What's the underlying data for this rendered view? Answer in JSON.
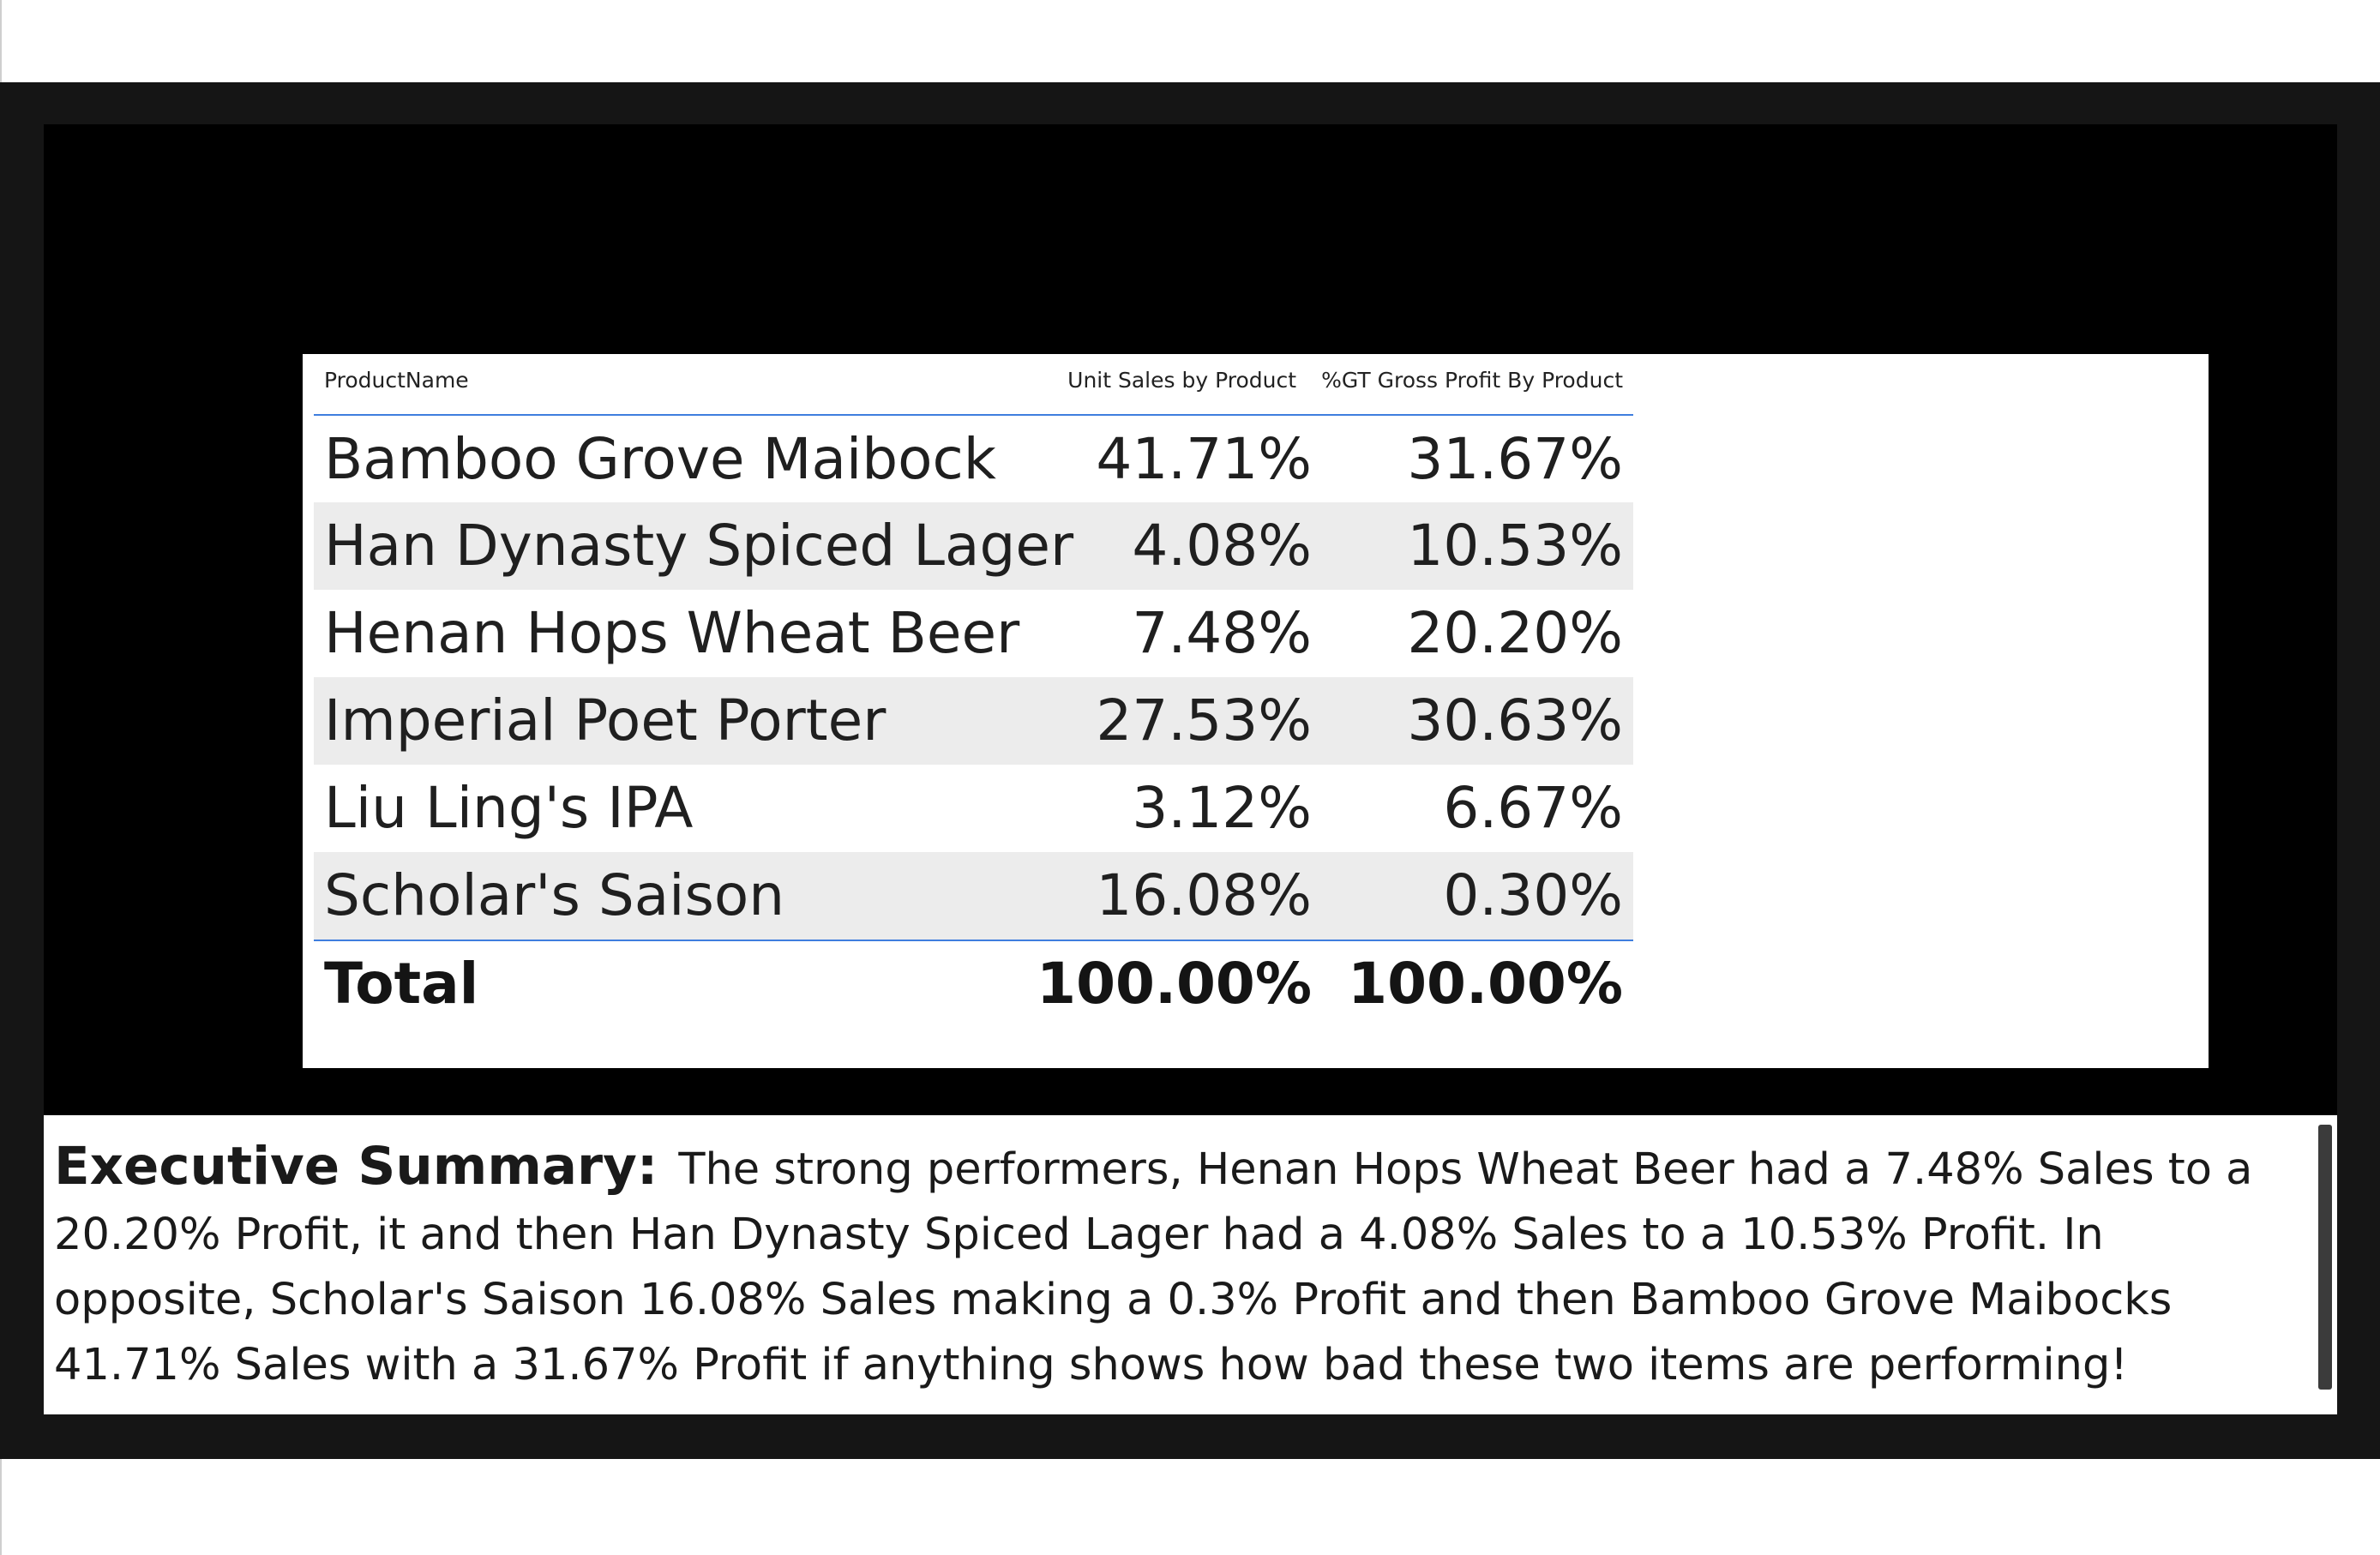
{
  "table": {
    "headers": {
      "product": "ProductName",
      "unit_sales": "Unit Sales by Product",
      "gross_profit": "%GT Gross Profit By Product"
    },
    "rows": [
      {
        "product": "Bamboo Grove Maibock",
        "unit_sales": "41.71%",
        "gross_profit": "31.67%"
      },
      {
        "product": "Han Dynasty Spiced Lager",
        "unit_sales": "4.08%",
        "gross_profit": "10.53%"
      },
      {
        "product": "Henan Hops Wheat Beer",
        "unit_sales": "7.48%",
        "gross_profit": "20.20%"
      },
      {
        "product": "Imperial Poet Porter",
        "unit_sales": "27.53%",
        "gross_profit": "30.63%"
      },
      {
        "product": "Liu Ling's IPA",
        "unit_sales": "3.12%",
        "gross_profit": "6.67%"
      },
      {
        "product": "Scholar's Saison",
        "unit_sales": "16.08%",
        "gross_profit": "0.30%"
      }
    ],
    "total": {
      "label": "Total",
      "unit_sales": "100.00%",
      "gross_profit": "100.00%"
    }
  },
  "summary": {
    "label": "Executive Summary:",
    "text": "The strong performers, Henan Hops Wheat Beer had a 7.48% Sales to a 20.20% Profit, it and then Han Dynasty Spiced Lager had a 4.08% Sales to a 10.53% Profit. In opposite, Scholar's Saison 16.08% Sales making a 0.3% Profit and then Bamboo Grove Maibocks 41.71% Sales with a 31.67% Profit if anything shows how bad these two items are performing!"
  },
  "colors": {
    "frame": "#151515",
    "canvas": "#000000",
    "row_shade": "#ececec",
    "accent_line": "#3f7ede"
  }
}
